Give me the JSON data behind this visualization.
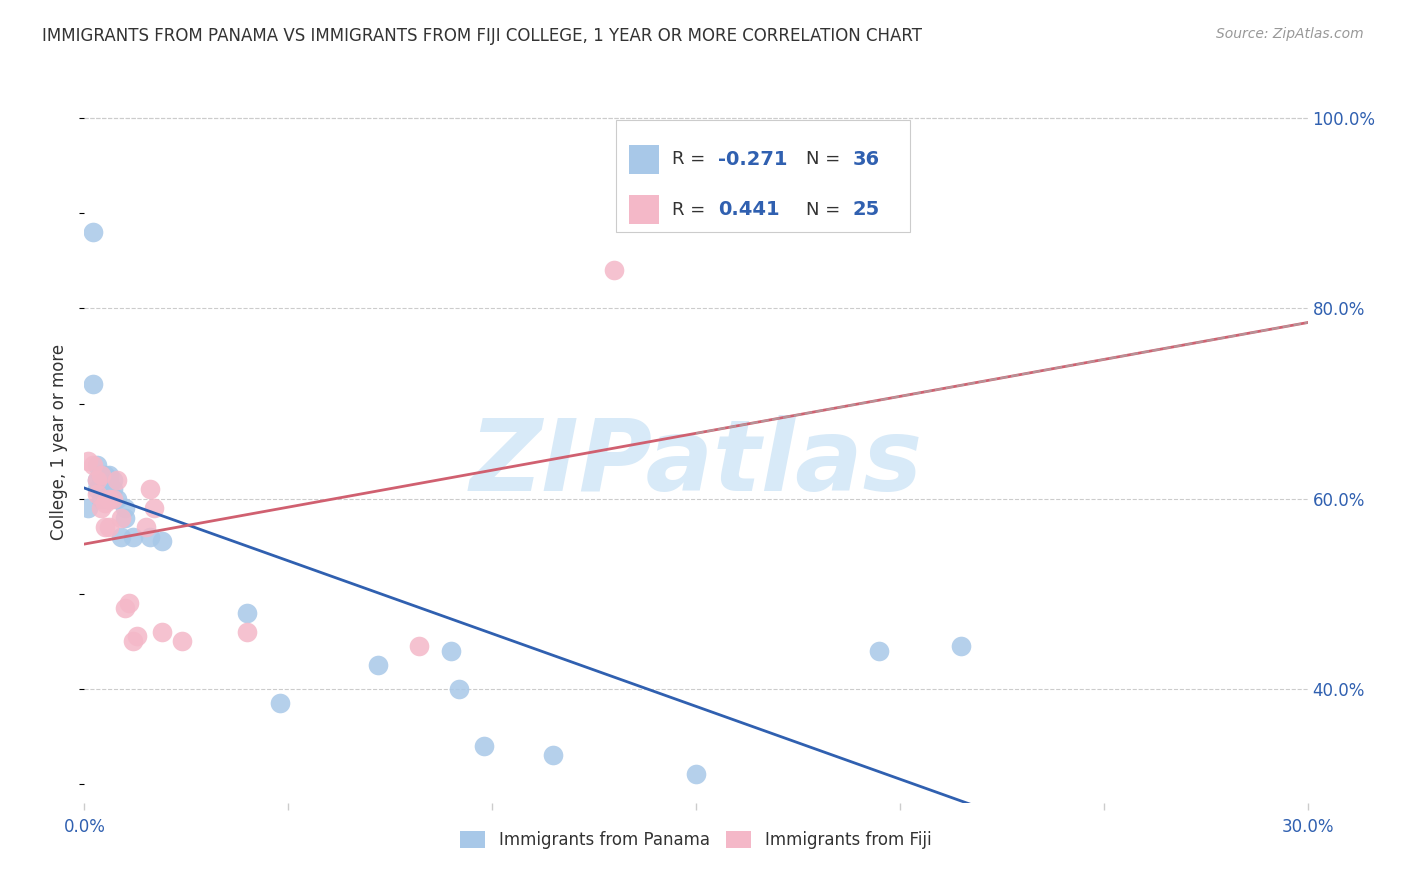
{
  "title": "IMMIGRANTS FROM PANAMA VS IMMIGRANTS FROM FIJI COLLEGE, 1 YEAR OR MORE CORRELATION CHART",
  "source": "Source: ZipAtlas.com",
  "ylabel": "College, 1 year or more",
  "xlim": [
    0.0,
    0.3
  ],
  "ylim": [
    0.28,
    1.04
  ],
  "xticks": [
    0.0,
    0.05,
    0.1,
    0.15,
    0.2,
    0.25,
    0.3
  ],
  "xticklabels": [
    "0.0%",
    "",
    "",
    "",
    "",
    "",
    "30.0%"
  ],
  "yticks_right": [
    1.0,
    0.8,
    0.6,
    0.4
  ],
  "yticklabels_right": [
    "100.0%",
    "80.0%",
    "60.0%",
    "40.0%"
  ],
  "panama_x": [
    0.001,
    0.002,
    0.002,
    0.003,
    0.003,
    0.003,
    0.004,
    0.004,
    0.004,
    0.005,
    0.005,
    0.005,
    0.005,
    0.006,
    0.006,
    0.006,
    0.006,
    0.007,
    0.007,
    0.008,
    0.009,
    0.01,
    0.01,
    0.012,
    0.016,
    0.019,
    0.04,
    0.048,
    0.072,
    0.09,
    0.092,
    0.098,
    0.115,
    0.15,
    0.195,
    0.215
  ],
  "panama_y": [
    0.59,
    0.72,
    0.88,
    0.61,
    0.62,
    0.635,
    0.6,
    0.615,
    0.625,
    0.6,
    0.61,
    0.62,
    0.625,
    0.6,
    0.61,
    0.62,
    0.625,
    0.61,
    0.62,
    0.6,
    0.56,
    0.58,
    0.59,
    0.56,
    0.56,
    0.555,
    0.48,
    0.385,
    0.425,
    0.44,
    0.4,
    0.34,
    0.33,
    0.31,
    0.44,
    0.445
  ],
  "fiji_x": [
    0.001,
    0.002,
    0.003,
    0.003,
    0.004,
    0.004,
    0.005,
    0.005,
    0.006,
    0.006,
    0.007,
    0.008,
    0.009,
    0.01,
    0.011,
    0.012,
    0.013,
    0.015,
    0.016,
    0.017,
    0.019,
    0.024,
    0.04,
    0.082,
    0.13
  ],
  "fiji_y": [
    0.64,
    0.635,
    0.605,
    0.62,
    0.625,
    0.59,
    0.57,
    0.595,
    0.57,
    0.6,
    0.6,
    0.62,
    0.58,
    0.485,
    0.49,
    0.45,
    0.455,
    0.57,
    0.61,
    0.59,
    0.46,
    0.45,
    0.46,
    0.445,
    0.84
  ],
  "panama_R": -0.271,
  "panama_N": 36,
  "fiji_R": 0.441,
  "fiji_N": 25,
  "panama_color": "#a8c8e8",
  "fiji_color": "#f4b8c8",
  "panama_line_color": "#3060b0",
  "fiji_line_color": "#d06070",
  "watermark_text": "ZIPatlas",
  "watermark_color": "#d8eaf8",
  "background_color": "#ffffff",
  "grid_color": "#cccccc"
}
